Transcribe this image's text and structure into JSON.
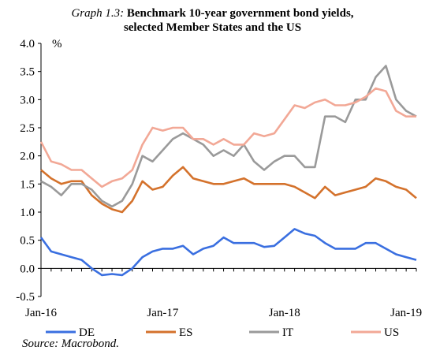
{
  "chart_data": {
    "type": "line",
    "title_label": "Graph 1.3:",
    "title_line1": "Benchmark 10-year government bond yields,",
    "title_line2": "selected Member States and the US",
    "ylabel": "%",
    "ylim": [
      -0.5,
      4.0
    ],
    "yticks": [
      "4.0",
      "3.5",
      "3.0",
      "2.5",
      "2.0",
      "1.5",
      "1.0",
      "0.5",
      "0.0",
      "-0.5"
    ],
    "xticks": [
      "Jan-16",
      "Jan-17",
      "Jan-18",
      "Jan-19"
    ],
    "xlim": [
      "2016-01",
      "2019-02"
    ],
    "grid": false,
    "legend_position": "bottom",
    "source": "Source: Macrobond.",
    "x": [
      "2016-01",
      "2016-02",
      "2016-03",
      "2016-04",
      "2016-05",
      "2016-06",
      "2016-07",
      "2016-08",
      "2016-09",
      "2016-10",
      "2016-11",
      "2016-12",
      "2017-01",
      "2017-02",
      "2017-03",
      "2017-04",
      "2017-05",
      "2017-06",
      "2017-07",
      "2017-08",
      "2017-09",
      "2017-10",
      "2017-11",
      "2017-12",
      "2018-01",
      "2018-02",
      "2018-03",
      "2018-04",
      "2018-05",
      "2018-06",
      "2018-07",
      "2018-08",
      "2018-09",
      "2018-10",
      "2018-11",
      "2018-12",
      "2019-01",
      "2019-02"
    ],
    "series": [
      {
        "name": "DE",
        "color": "#3a6fe0",
        "values": [
          0.55,
          0.3,
          0.25,
          0.2,
          0.15,
          0.0,
          -0.12,
          -0.1,
          -0.12,
          0.0,
          0.2,
          0.3,
          0.35,
          0.35,
          0.4,
          0.25,
          0.35,
          0.4,
          0.55,
          0.45,
          0.45,
          0.45,
          0.38,
          0.4,
          0.55,
          0.7,
          0.62,
          0.58,
          0.45,
          0.35,
          0.35,
          0.35,
          0.45,
          0.45,
          0.35,
          0.25,
          0.2,
          0.15
        ]
      },
      {
        "name": "ES",
        "color": "#d4722c",
        "values": [
          1.75,
          1.6,
          1.5,
          1.55,
          1.55,
          1.3,
          1.15,
          1.05,
          1.0,
          1.2,
          1.55,
          1.4,
          1.45,
          1.65,
          1.8,
          1.6,
          1.55,
          1.5,
          1.5,
          1.55,
          1.6,
          1.5,
          1.5,
          1.5,
          1.5,
          1.45,
          1.35,
          1.25,
          1.45,
          1.3,
          1.35,
          1.4,
          1.45,
          1.6,
          1.55,
          1.45,
          1.4,
          1.25
        ]
      },
      {
        "name": "IT",
        "color": "#9a9a9a",
        "values": [
          1.55,
          1.45,
          1.3,
          1.5,
          1.5,
          1.4,
          1.2,
          1.1,
          1.2,
          1.5,
          2.0,
          1.9,
          2.1,
          2.3,
          2.4,
          2.3,
          2.2,
          2.0,
          2.1,
          2.0,
          2.2,
          1.9,
          1.75,
          1.9,
          2.0,
          2.0,
          1.8,
          1.8,
          2.7,
          2.7,
          2.6,
          3.0,
          3.0,
          3.4,
          3.6,
          3.0,
          2.8,
          2.7
        ]
      },
      {
        "name": "US",
        "color": "#f2a896",
        "values": [
          2.25,
          1.9,
          1.85,
          1.75,
          1.75,
          1.6,
          1.45,
          1.55,
          1.6,
          1.75,
          2.2,
          2.5,
          2.45,
          2.5,
          2.5,
          2.3,
          2.3,
          2.2,
          2.3,
          2.2,
          2.2,
          2.4,
          2.35,
          2.4,
          2.65,
          2.9,
          2.85,
          2.95,
          3.0,
          2.9,
          2.9,
          2.95,
          3.05,
          3.2,
          3.15,
          2.8,
          2.7,
          2.7
        ]
      }
    ]
  }
}
